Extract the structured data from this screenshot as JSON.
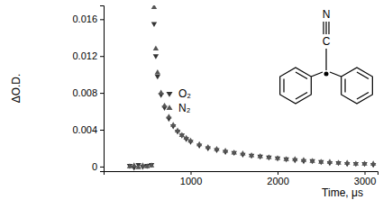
{
  "chart_data": {
    "type": "scatter",
    "x_label": "Time, μs",
    "y_label": "ΔO.D.",
    "annotations": [
      "N",
      "C"
    ],
    "x": [
      300,
      350,
      400,
      450,
      500,
      550,
      580,
      600,
      620,
      660,
      700,
      750,
      800,
      850,
      900,
      950,
      1000,
      1100,
      1200,
      1300,
      1400,
      1500,
      1600,
      1700,
      1800,
      1900,
      2000,
      2100,
      2200,
      2300,
      2400,
      2500,
      2600,
      2700,
      2800,
      2900,
      3000,
      3100
    ],
    "series": [
      {
        "name": "O₂",
        "color": "#333333",
        "marker": "triangle-down",
        "values": [
          0.0001,
          -0.0001,
          0.0002,
          0,
          0.0001,
          0.0002,
          0.0155,
          0.012,
          0.0098,
          0.0078,
          0.0064,
          0.0052,
          0.0044,
          0.0038,
          0.0034,
          0.003,
          0.0027,
          0.0023,
          0.002,
          0.0018,
          0.0016,
          0.0015,
          0.0013,
          0.0012,
          0.0011,
          0.001,
          0.0009,
          0.0008,
          0.0007,
          0.0006,
          0.0006,
          0.0005,
          0.0004,
          0.0004,
          0.0003,
          0.0003,
          0.0003,
          0.0002
        ]
      },
      {
        "name": "N₂",
        "color": "#555555",
        "marker": "triangle-up",
        "values": [
          0,
          0.0001,
          -0.0001,
          0.0001,
          0,
          0.0001,
          0.0173,
          0.0128,
          0.0102,
          0.008,
          0.0066,
          0.0054,
          0.0045,
          0.0039,
          0.0034,
          0.0031,
          0.0028,
          0.0024,
          0.0021,
          0.0019,
          0.0017,
          0.0015,
          0.0014,
          0.0012,
          0.0011,
          0.001,
          0.0009,
          0.0008,
          0.0008,
          0.0007,
          0.0006,
          0.0005,
          0.0005,
          0.0004,
          0.0004,
          0.0003,
          0.0003,
          0.0003
        ]
      }
    ],
    "xlim": [
      0,
      3150
    ],
    "xticks": [
      1000,
      2000,
      3000
    ],
    "ylim": [
      -0.0005,
      0.0175
    ],
    "yticks": [
      0,
      0.004,
      0.008,
      0.012,
      0.016
    ],
    "legend": "center",
    "grid": false
  }
}
